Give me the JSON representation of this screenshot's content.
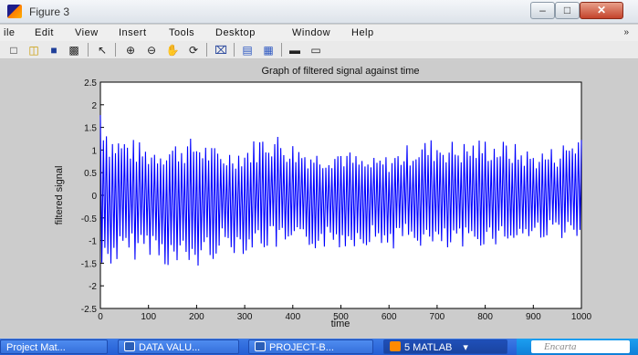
{
  "window": {
    "title": "Figure 3"
  },
  "window_controls": {
    "minimize": "–",
    "maximize": "□",
    "close": "✕"
  },
  "menu": [
    "ile",
    "Edit",
    "View",
    "Insert",
    "Tools",
    "Desktop",
    "Window",
    "Help"
  ],
  "menu_overflow": "»",
  "toolbar_icons": [
    "new-figure-icon",
    "open-file-icon",
    "save-icon",
    "print-icon",
    "pointer-icon",
    "zoom-in-icon",
    "zoom-out-icon",
    "pan-icon",
    "rotate-3d-icon",
    "data-cursor-icon",
    "colorbar-icon",
    "legend-icon",
    "hide-plot-tools-icon",
    "show-plot-tools-icon"
  ],
  "chart_data": {
    "type": "line",
    "title": "Graph of filtered signal against time",
    "xlabel": "time",
    "ylabel": "filtered signal",
    "xlim": [
      0,
      1000
    ],
    "ylim": [
      -2.5,
      2.5
    ],
    "xticks": [
      "0",
      "100",
      "200",
      "300",
      "400",
      "500",
      "600",
      "700",
      "800",
      "900",
      "1000"
    ],
    "yticks": [
      "-2.5",
      "-2",
      "-1.5",
      "-1",
      "-0.5",
      "0",
      "0.5",
      "1",
      "1.5",
      "2",
      "2.5"
    ],
    "grid": false,
    "color": "#0000ff",
    "envelope": {
      "x": [
        0,
        20,
        60,
        100,
        150,
        200,
        250,
        300,
        350,
        400,
        450,
        500,
        550,
        600,
        650,
        700,
        750,
        800,
        850,
        900,
        950,
        1000
      ],
      "max": [
        2.3,
        1.4,
        1.3,
        1.1,
        1.2,
        1.3,
        1.0,
        1.1,
        1.5,
        1.2,
        1.0,
        1.1,
        0.8,
        0.9,
        1.2,
        1.3,
        1.2,
        1.3,
        1.2,
        1.0,
        1.1,
        1.5
      ],
      "min": [
        -1.9,
        -1.6,
        -1.5,
        -1.3,
        -1.7,
        -1.7,
        -1.3,
        -1.3,
        -1.2,
        -1.3,
        -1.2,
        -1.2,
        -1.1,
        -1.2,
        -1.1,
        -1.3,
        -1.3,
        -1.1,
        -1.1,
        -1.0,
        -0.9,
        -1.2
      ]
    },
    "cycles_per_axis": 160
  },
  "taskbar": {
    "items": [
      {
        "label": "Project Mat...",
        "icon_color": ""
      },
      {
        "label": "DATA VALU...",
        "icon_color": "#2b5fb8"
      },
      {
        "label": "PROJECT-B...",
        "icon_color": "#2b5fb8"
      },
      {
        "label": "5 MATLAB",
        "icon_color": "#ff8a00"
      }
    ],
    "tray_label": "Encarta"
  }
}
